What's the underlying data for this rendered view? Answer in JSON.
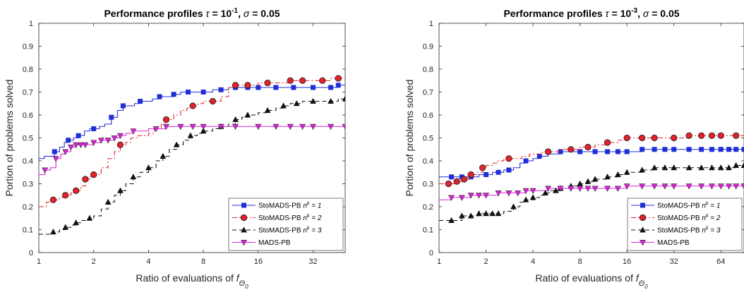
{
  "chart_data": [
    {
      "type": "line",
      "title_parts": [
        "Performance profiles ",
        "τ",
        " = 10",
        "-1",
        ", ",
        "σ",
        " = 0.05"
      ],
      "xlabel_main": "Ratio of evaluations of ",
      "xlabel_sym": "f",
      "xlabel_sub": "Θ",
      "xlabel_subsub": "0",
      "ylabel": "Portion of problems solved",
      "x_scale": "log2",
      "xlim": [
        1,
        48
      ],
      "ylim": [
        0,
        1
      ],
      "xticks": [
        1,
        2,
        4,
        8,
        16,
        32
      ],
      "xtick_labels": [
        "1",
        "2",
        "4",
        "8",
        "16",
        "32"
      ],
      "yticks": [
        0,
        0.1,
        0.2,
        0.3,
        0.4,
        0.5,
        0.6,
        0.7,
        0.8,
        0.9,
        1
      ],
      "ytick_labels": [
        "0",
        "0.1",
        "0.2",
        "0.3",
        "0.4",
        "0.5",
        "0.6",
        "0.7",
        "0.8",
        "0.9",
        "1"
      ],
      "legend_position": "bottom-right",
      "legend": [
        {
          "main": "StoMADS-PB ",
          "sup_base": "n",
          "sup": "k",
          "tail": " = 1"
        },
        {
          "main": "StoMADS-PB ",
          "sup_base": "n",
          "sup": "k",
          "tail": " = 2"
        },
        {
          "main": "StoMADS-PB ",
          "sup_base": "n",
          "sup": "k",
          "tail": " = 3"
        },
        {
          "main": "MADS-PB",
          "sup_base": "",
          "sup": "",
          "tail": ""
        }
      ],
      "series": [
        {
          "color": "#1f2fd6",
          "dash": "",
          "marker": "square",
          "x": [
            1,
            1.07,
            1.15,
            1.22,
            1.3,
            1.38,
            1.45,
            1.55,
            1.65,
            1.78,
            1.9,
            2.0,
            2.15,
            2.3,
            2.5,
            2.7,
            2.9,
            3.1,
            3.35,
            3.6,
            3.9,
            4.2,
            4.6,
            5.0,
            5.5,
            6.0,
            6.6,
            7.2,
            8.0,
            9.0,
            10,
            11,
            12,
            13,
            14,
            15,
            16,
            18,
            20,
            22,
            25,
            28,
            32,
            36,
            40,
            44,
            48
          ],
          "y": [
            0.41,
            0.42,
            0.42,
            0.44,
            0.46,
            0.48,
            0.49,
            0.5,
            0.51,
            0.53,
            0.54,
            0.54,
            0.55,
            0.56,
            0.59,
            0.62,
            0.64,
            0.64,
            0.65,
            0.66,
            0.66,
            0.67,
            0.68,
            0.68,
            0.69,
            0.7,
            0.7,
            0.7,
            0.7,
            0.71,
            0.71,
            0.72,
            0.72,
            0.72,
            0.72,
            0.72,
            0.72,
            0.72,
            0.72,
            0.72,
            0.72,
            0.72,
            0.72,
            0.72,
            0.72,
            0.73,
            0.73
          ],
          "marker_x": [
            1.22,
            1.45,
            1.65,
            2.0,
            2.5,
            2.9,
            3.6,
            4.6,
            5.5,
            6.6,
            8.0,
            10,
            12,
            14,
            16,
            20,
            25,
            32,
            40,
            44
          ]
        },
        {
          "color": "#e8202a",
          "dash": "7,3,2,3",
          "marker": "circle",
          "x": [
            1,
            1.1,
            1.2,
            1.3,
            1.4,
            1.5,
            1.6,
            1.7,
            1.8,
            1.9,
            2.0,
            2.2,
            2.4,
            2.6,
            2.8,
            3.0,
            3.2,
            3.5,
            3.8,
            4.0,
            4.3,
            4.7,
            5.0,
            5.5,
            6.0,
            6.5,
            7.0,
            7.5,
            8.0,
            9.0,
            10,
            11,
            12,
            13,
            14,
            16,
            18,
            20,
            24,
            28,
            32,
            36,
            40,
            44,
            48
          ],
          "y": [
            0.2,
            0.22,
            0.23,
            0.24,
            0.25,
            0.26,
            0.27,
            0.29,
            0.32,
            0.33,
            0.34,
            0.37,
            0.41,
            0.44,
            0.47,
            0.48,
            0.5,
            0.51,
            0.51,
            0.52,
            0.54,
            0.56,
            0.58,
            0.6,
            0.62,
            0.63,
            0.64,
            0.65,
            0.66,
            0.66,
            0.68,
            0.72,
            0.73,
            0.73,
            0.73,
            0.74,
            0.74,
            0.74,
            0.75,
            0.75,
            0.75,
            0.75,
            0.76,
            0.76,
            0.76
          ],
          "marker_x": [
            1.2,
            1.4,
            1.6,
            1.8,
            2.0,
            2.8,
            5.0,
            7.0,
            9.0,
            12,
            14,
            18,
            24,
            28,
            36,
            44
          ]
        },
        {
          "color": "#111111",
          "dash": "6,4",
          "marker": "triangle-up",
          "x": [
            1,
            1.1,
            1.2,
            1.3,
            1.4,
            1.5,
            1.6,
            1.7,
            1.8,
            1.9,
            2.0,
            2.2,
            2.4,
            2.6,
            2.8,
            3.0,
            3.3,
            3.6,
            4.0,
            4.4,
            4.8,
            5.2,
            5.7,
            6.2,
            6.8,
            7.4,
            8.0,
            9.0,
            10,
            11,
            12,
            13,
            14,
            16,
            18,
            20,
            22,
            24,
            26,
            28,
            32,
            36,
            40,
            44,
            48
          ],
          "y": [
            0.08,
            0.08,
            0.09,
            0.1,
            0.11,
            0.12,
            0.13,
            0.14,
            0.14,
            0.15,
            0.16,
            0.19,
            0.22,
            0.25,
            0.27,
            0.3,
            0.33,
            0.35,
            0.37,
            0.4,
            0.42,
            0.45,
            0.47,
            0.49,
            0.51,
            0.52,
            0.53,
            0.54,
            0.55,
            0.56,
            0.58,
            0.59,
            0.6,
            0.61,
            0.62,
            0.63,
            0.64,
            0.65,
            0.65,
            0.66,
            0.66,
            0.66,
            0.66,
            0.67,
            0.67
          ],
          "marker_x": [
            1.2,
            1.4,
            1.6,
            1.9,
            2.4,
            2.8,
            3.3,
            4.0,
            4.8,
            5.7,
            6.8,
            8.0,
            10,
            12,
            14,
            18,
            22,
            26,
            32,
            40,
            48
          ]
        },
        {
          "color": "#dd20dd",
          "dash": "",
          "marker": "triangle-down",
          "x": [
            1,
            1.08,
            1.16,
            1.24,
            1.32,
            1.4,
            1.5,
            1.6,
            1.7,
            1.8,
            2.0,
            2.2,
            2.4,
            2.6,
            2.8,
            3.0,
            3.3,
            3.6,
            4.0,
            4.4,
            5.0,
            6.0,
            8.0,
            10,
            16,
            24,
            32,
            48
          ],
          "y": [
            0.34,
            0.36,
            0.37,
            0.41,
            0.43,
            0.44,
            0.46,
            0.47,
            0.47,
            0.47,
            0.48,
            0.49,
            0.49,
            0.5,
            0.51,
            0.52,
            0.53,
            0.53,
            0.54,
            0.54,
            0.55,
            0.55,
            0.55,
            0.55,
            0.55,
            0.55,
            0.55,
            0.55
          ],
          "marker_x": [
            1.08,
            1.24,
            1.4,
            1.5,
            1.6,
            1.7,
            1.8,
            2.0,
            2.2,
            2.4,
            2.6,
            2.8,
            3.3,
            4.4,
            5.0,
            6.0,
            7.0,
            8.0,
            10,
            12,
            16,
            20,
            24,
            28,
            32,
            40,
            48
          ]
        }
      ]
    },
    {
      "type": "line",
      "title_parts": [
        "Performance profiles ",
        "τ",
        " = 10",
        "-3",
        ", ",
        "σ",
        " = 0.05"
      ],
      "xlabel_main": "Ratio of evaluations of ",
      "xlabel_sym": "f",
      "xlabel_sub": "Θ",
      "xlabel_subsub": "0",
      "ylabel": "Portion of problems solved",
      "x_scale": "log2",
      "xlim": [
        1,
        90
      ],
      "ylim": [
        0,
        1
      ],
      "xticks": [
        1,
        2,
        4,
        8,
        16,
        32,
        64
      ],
      "xtick_labels": [
        "1",
        "2",
        "4",
        "8",
        "16",
        "32",
        "64"
      ],
      "yticks": [
        0,
        0.1,
        0.2,
        0.3,
        0.4,
        0.5,
        0.6,
        0.7,
        0.8,
        0.9,
        1
      ],
      "ytick_labels": [
        "0",
        "0.1",
        "0.2",
        "0.3",
        "0.4",
        "0.5",
        "0.6",
        "0.7",
        "0.8",
        "0.9",
        "1"
      ],
      "legend_position": "bottom-right",
      "legend": [
        {
          "main": "StoMADS-PB ",
          "sup_base": "n",
          "sup": "k",
          "tail": " = 1"
        },
        {
          "main": "StoMADS-PB ",
          "sup_base": "n",
          "sup": "k",
          "tail": " = 2"
        },
        {
          "main": "StoMADS-PB ",
          "sup_base": "n",
          "sup": "k",
          "tail": " = 3"
        },
        {
          "main": "MADS-PB",
          "sup_base": "",
          "sup": "",
          "tail": ""
        }
      ],
      "series": [
        {
          "color": "#1f2fd6",
          "dash": "",
          "marker": "square",
          "x": [
            1,
            1.2,
            1.4,
            1.6,
            1.8,
            2.0,
            2.2,
            2.4,
            2.6,
            2.8,
            3.0,
            3.3,
            3.6,
            4.0,
            4.4,
            5.0,
            5.5,
            6.0,
            8.0,
            10,
            12,
            14,
            16,
            20,
            24,
            28,
            32,
            40,
            48,
            56,
            64,
            72,
            80,
            90
          ],
          "y": [
            0.33,
            0.33,
            0.33,
            0.33,
            0.34,
            0.34,
            0.35,
            0.35,
            0.36,
            0.36,
            0.37,
            0.39,
            0.4,
            0.41,
            0.42,
            0.43,
            0.43,
            0.44,
            0.44,
            0.44,
            0.44,
            0.44,
            0.44,
            0.45,
            0.45,
            0.45,
            0.45,
            0.45,
            0.45,
            0.45,
            0.45,
            0.45,
            0.45,
            0.45
          ],
          "marker_x": [
            1.2,
            1.4,
            1.6,
            2.0,
            2.4,
            2.8,
            3.6,
            4.4,
            6.0,
            8.0,
            10,
            12,
            14,
            16,
            20,
            24,
            28,
            32,
            40,
            48,
            56,
            64,
            72,
            80,
            90
          ]
        },
        {
          "color": "#e8202a",
          "dash": "7,3,2,3",
          "marker": "circle",
          "x": [
            1,
            1.15,
            1.3,
            1.45,
            1.6,
            1.75,
            1.9,
            2.0,
            2.2,
            2.4,
            2.6,
            2.8,
            3.0,
            3.4,
            3.8,
            4.2,
            4.6,
            5.0,
            6.0,
            7.0,
            8.0,
            9.0,
            10,
            12,
            14,
            16,
            20,
            24,
            28,
            32,
            40,
            48,
            56,
            64,
            72,
            80,
            90
          ],
          "y": [
            0.3,
            0.3,
            0.31,
            0.32,
            0.34,
            0.35,
            0.37,
            0.38,
            0.39,
            0.4,
            0.41,
            0.41,
            0.41,
            0.42,
            0.43,
            0.43,
            0.44,
            0.44,
            0.45,
            0.45,
            0.46,
            0.46,
            0.47,
            0.48,
            0.49,
            0.5,
            0.5,
            0.5,
            0.5,
            0.5,
            0.51,
            0.51,
            0.51,
            0.51,
            0.51,
            0.51,
            0.51
          ],
          "marker_x": [
            1.15,
            1.3,
            1.45,
            1.6,
            1.9,
            2.8,
            5.0,
            7.0,
            9.0,
            12,
            16,
            20,
            24,
            32,
            40,
            48,
            56,
            64,
            80
          ]
        },
        {
          "color": "#111111",
          "dash": "6,4",
          "marker": "triangle-up",
          "x": [
            1,
            1.2,
            1.4,
            1.6,
            1.8,
            2.0,
            2.2,
            2.4,
            2.6,
            2.8,
            3.0,
            3.3,
            3.6,
            4.0,
            4.4,
            4.8,
            5.2,
            5.6,
            6.0,
            7.0,
            8.0,
            9.0,
            10,
            12,
            14,
            16,
            18,
            20,
            24,
            28,
            32,
            40,
            48,
            56,
            64,
            72,
            80,
            90
          ],
          "y": [
            0.14,
            0.14,
            0.16,
            0.16,
            0.17,
            0.17,
            0.17,
            0.17,
            0.18,
            0.18,
            0.2,
            0.22,
            0.23,
            0.24,
            0.25,
            0.26,
            0.27,
            0.27,
            0.28,
            0.29,
            0.3,
            0.31,
            0.32,
            0.33,
            0.34,
            0.35,
            0.35,
            0.36,
            0.37,
            0.37,
            0.37,
            0.37,
            0.37,
            0.37,
            0.37,
            0.37,
            0.38,
            0.38
          ],
          "marker_x": [
            1.2,
            1.4,
            1.6,
            1.8,
            2.0,
            2.2,
            2.4,
            3.0,
            3.6,
            4.0,
            4.8,
            5.6,
            6.0,
            7.0,
            8.0,
            9.0,
            10,
            12,
            14,
            16,
            20,
            24,
            28,
            32,
            40,
            48,
            56,
            64,
            72,
            80,
            90
          ]
        },
        {
          "color": "#dd20dd",
          "dash": "",
          "marker": "triangle-down",
          "x": [
            1,
            1.2,
            1.4,
            1.6,
            1.8,
            2.0,
            2.4,
            2.8,
            3.2,
            3.6,
            4.0,
            5.0,
            6.0,
            8.0,
            10,
            12,
            16,
            20,
            24,
            32,
            40,
            48,
            64,
            90
          ],
          "y": [
            0.23,
            0.24,
            0.24,
            0.25,
            0.25,
            0.25,
            0.26,
            0.26,
            0.26,
            0.27,
            0.27,
            0.28,
            0.28,
            0.28,
            0.28,
            0.28,
            0.29,
            0.29,
            0.29,
            0.29,
            0.29,
            0.29,
            0.29,
            0.29
          ],
          "marker_x": [
            1.2,
            1.4,
            1.6,
            1.8,
            2.0,
            2.4,
            2.8,
            3.2,
            3.6,
            4.0,
            5.0,
            6.0,
            7.0,
            8.0,
            9.0,
            10,
            12,
            14,
            16,
            20,
            24,
            28,
            32,
            40,
            48,
            56,
            64,
            72,
            80,
            90
          ]
        }
      ]
    }
  ]
}
